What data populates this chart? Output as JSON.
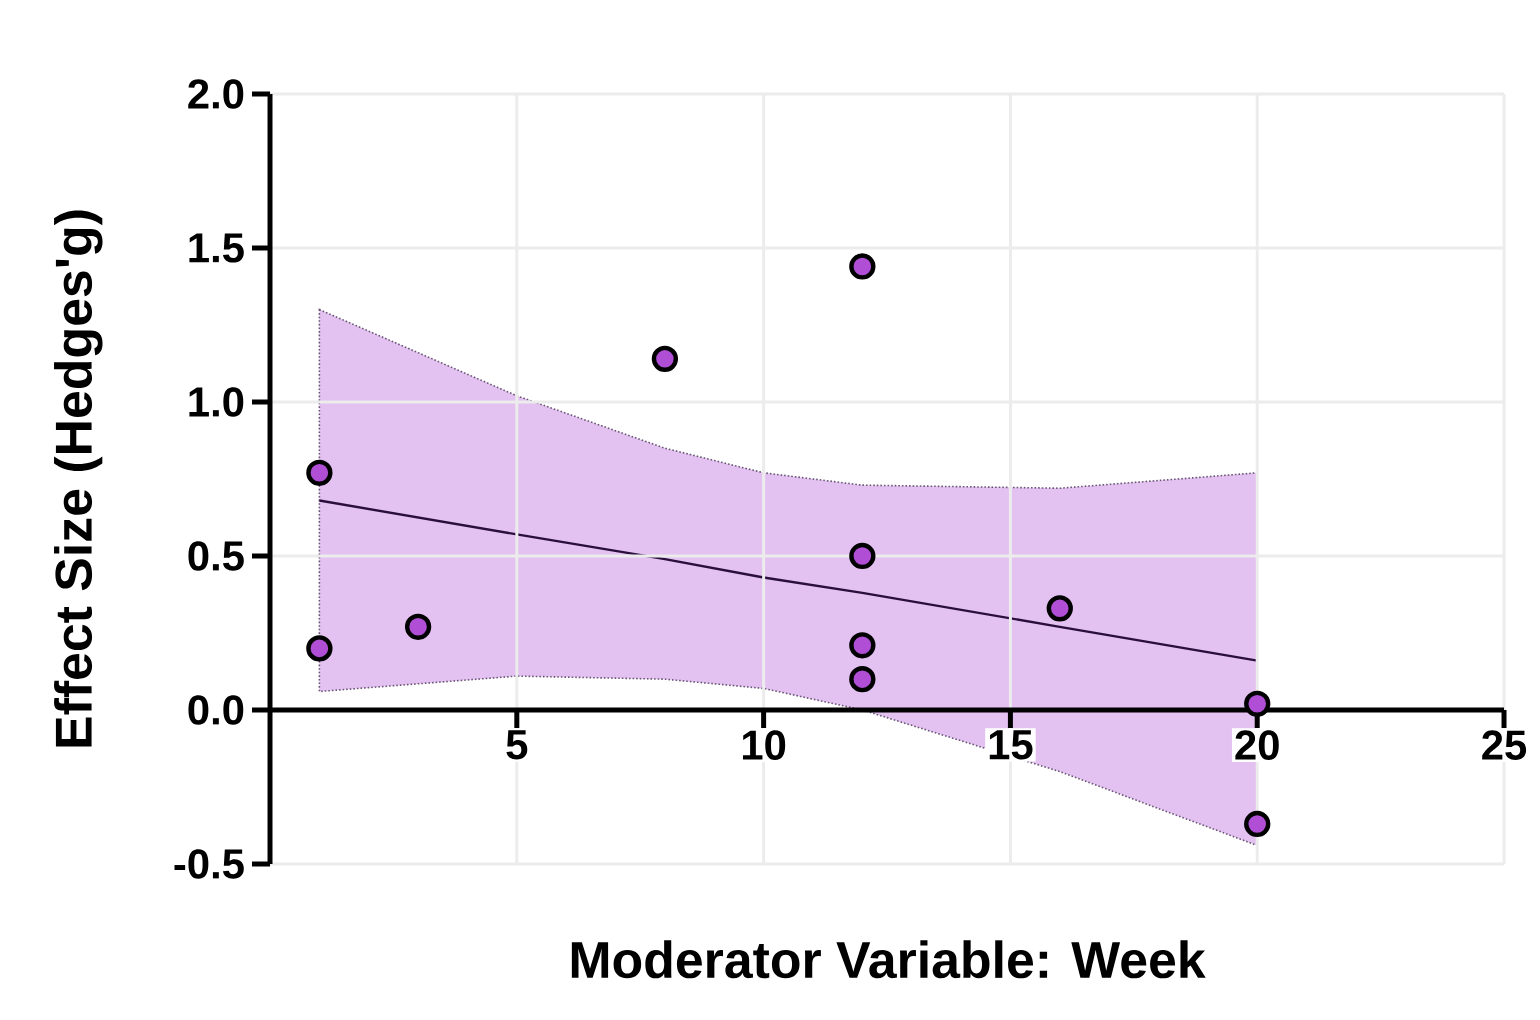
{
  "chart_data": {
    "type": "scatter",
    "xlabel": "Moderator Variable: Week",
    "ylabel": "Effect Size (Hedges'g)",
    "xlim": [
      0,
      25
    ],
    "xticks": [
      5,
      10,
      15,
      20,
      25
    ],
    "ylim": [
      -0.5,
      2.0
    ],
    "yticks": [
      {
        "value": -0.5,
        "label": "-0.5"
      },
      {
        "value": 0,
        "label": "0.0"
      },
      {
        "value": 0.5,
        "label": "0.5"
      },
      {
        "value": 1.0,
        "label": "1.0"
      },
      {
        "value": 1.5,
        "label": "1.5"
      },
      {
        "value": 2.0,
        "label": "2.0"
      }
    ],
    "grid": true,
    "series": [
      {
        "type": "line",
        "color": "#2a0f3c",
        "line_style": "solid",
        "marker": "none",
        "x": [
          1,
          5,
          8,
          10,
          12,
          16,
          20
        ],
        "values": [
          0.68,
          0.57,
          0.49,
          0.43,
          0.38,
          0.27,
          0.16
        ],
        "lower": [
          0.06,
          0.11,
          0.1,
          0.07,
          0.0,
          -0.2,
          -0.44
        ],
        "upper": [
          1.3,
          1.02,
          0.85,
          0.77,
          0.73,
          0.72,
          0.77
        ]
      },
      {
        "color": "#b04fd6",
        "marker": "circle",
        "x": [
          1,
          1,
          3,
          8,
          12,
          12,
          12,
          12,
          16,
          20,
          20
        ],
        "values": [
          0.77,
          0.2,
          0.27,
          1.14,
          1.44,
          0.5,
          0.21,
          0.1,
          0.33,
          0.02,
          -0.37
        ]
      }
    ]
  }
}
